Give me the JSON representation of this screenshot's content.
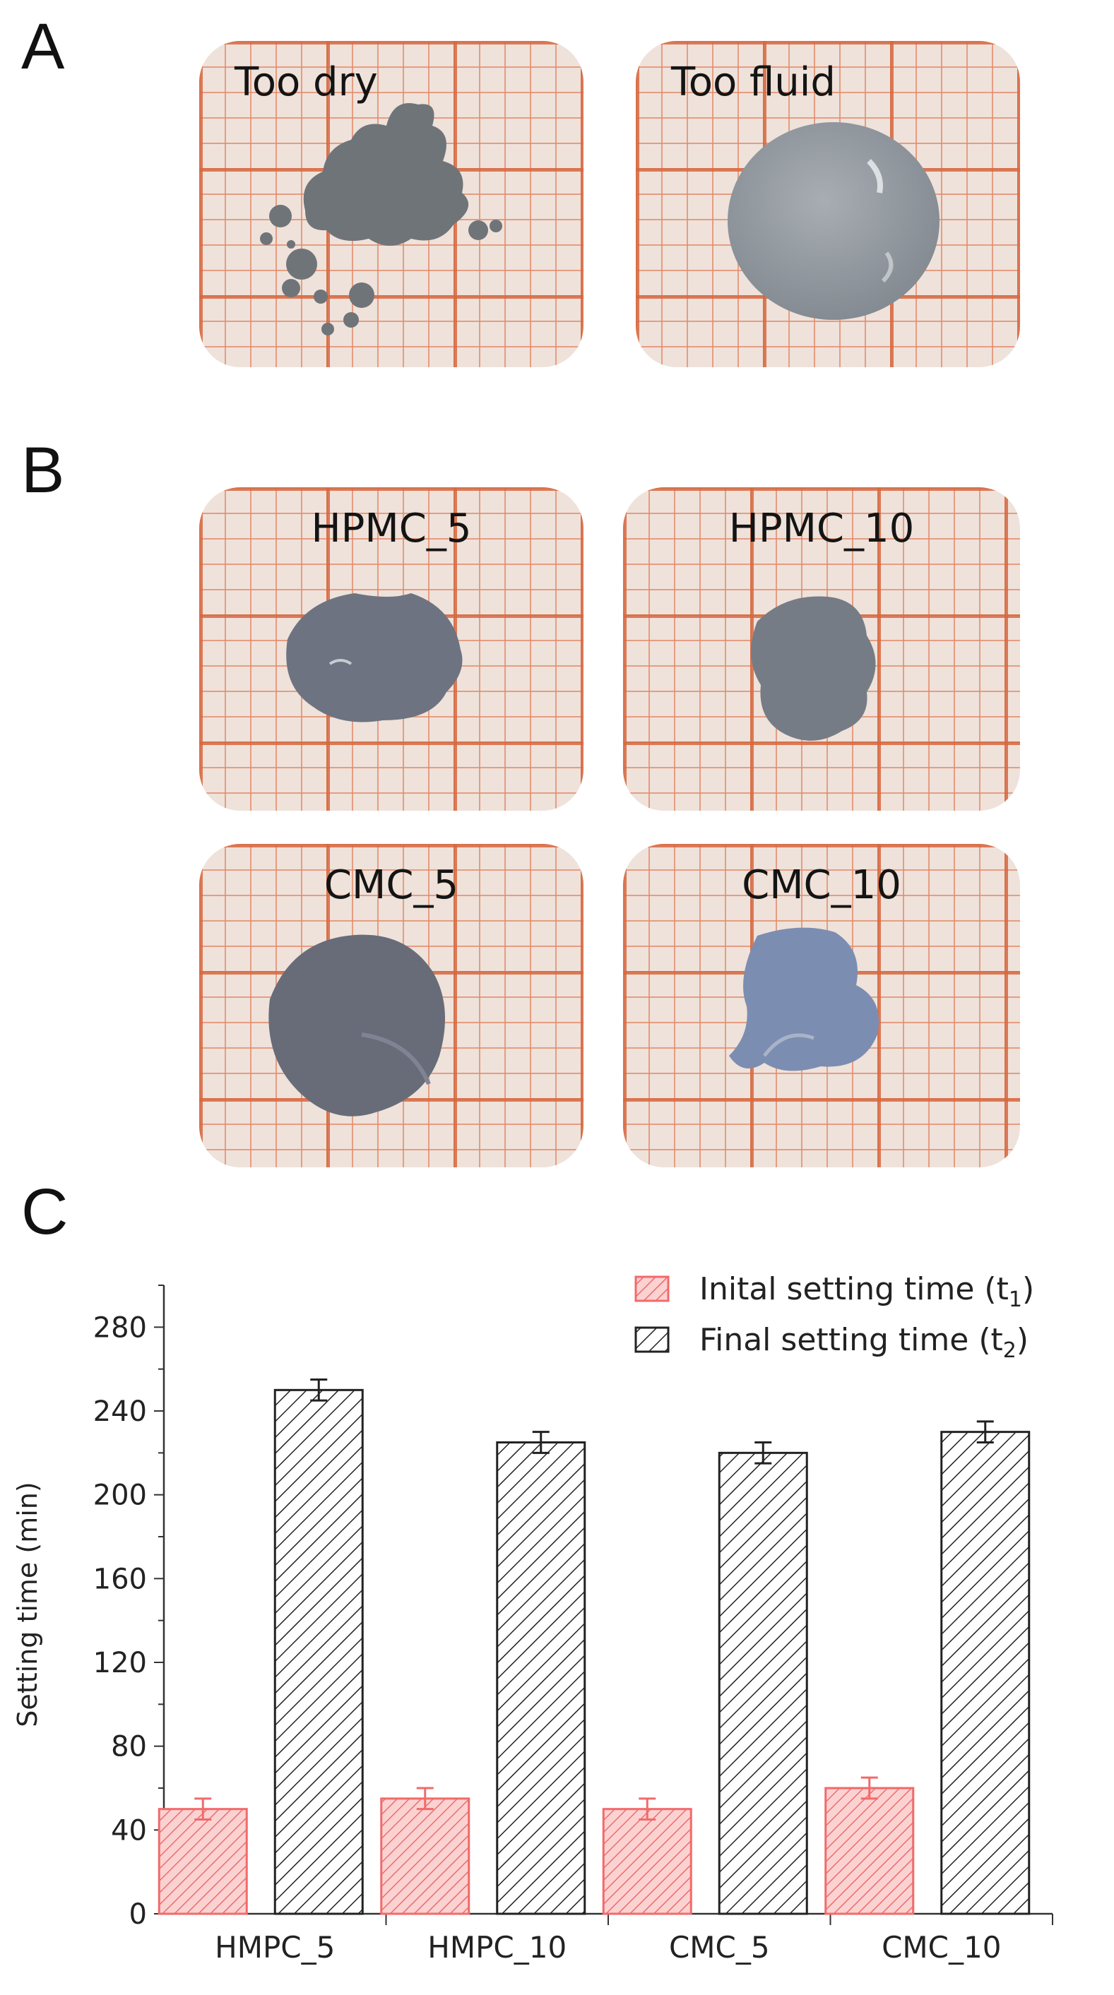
{
  "panels": {
    "a_label": "A",
    "b_label": "B",
    "c_label": "C"
  },
  "photos_a": [
    {
      "caption": "Too dry",
      "sample": "dry powder"
    },
    {
      "caption": "Too fluid",
      "sample": "fluid drop"
    }
  ],
  "photos_b": [
    {
      "caption": "HPMC_5"
    },
    {
      "caption": "HPMC_10"
    },
    {
      "caption": "CMC_5"
    },
    {
      "caption": "CMC_10"
    }
  ],
  "colors": {
    "initial_bar": "#f26a6a",
    "initial_fill": "#fbd2d2",
    "final_bar": "#222222",
    "grid_orange": "#d66840",
    "sample_gray": "#7f848c"
  },
  "chart_data": {
    "type": "bar",
    "title": "",
    "xlabel": "",
    "ylabel": "Setting time (min)",
    "ylim": [
      0,
      300
    ],
    "yticks": [
      0,
      40,
      80,
      120,
      160,
      200,
      240,
      280
    ],
    "categories": [
      "HMPC_5",
      "HMPC_10",
      "CMC_5",
      "CMC_10"
    ],
    "legend_position": "top-right",
    "series": [
      {
        "name": "Inital setting time (t",
        "subscript": "1",
        "suffix": ")",
        "values": [
          50,
          55,
          50,
          60
        ],
        "errors": [
          5,
          5,
          5,
          5
        ]
      },
      {
        "name": "Final setting time (t",
        "subscript": "2",
        "suffix": ")",
        "values": [
          250,
          225,
          220,
          230
        ],
        "errors": [
          5,
          5,
          5,
          5
        ]
      }
    ]
  }
}
